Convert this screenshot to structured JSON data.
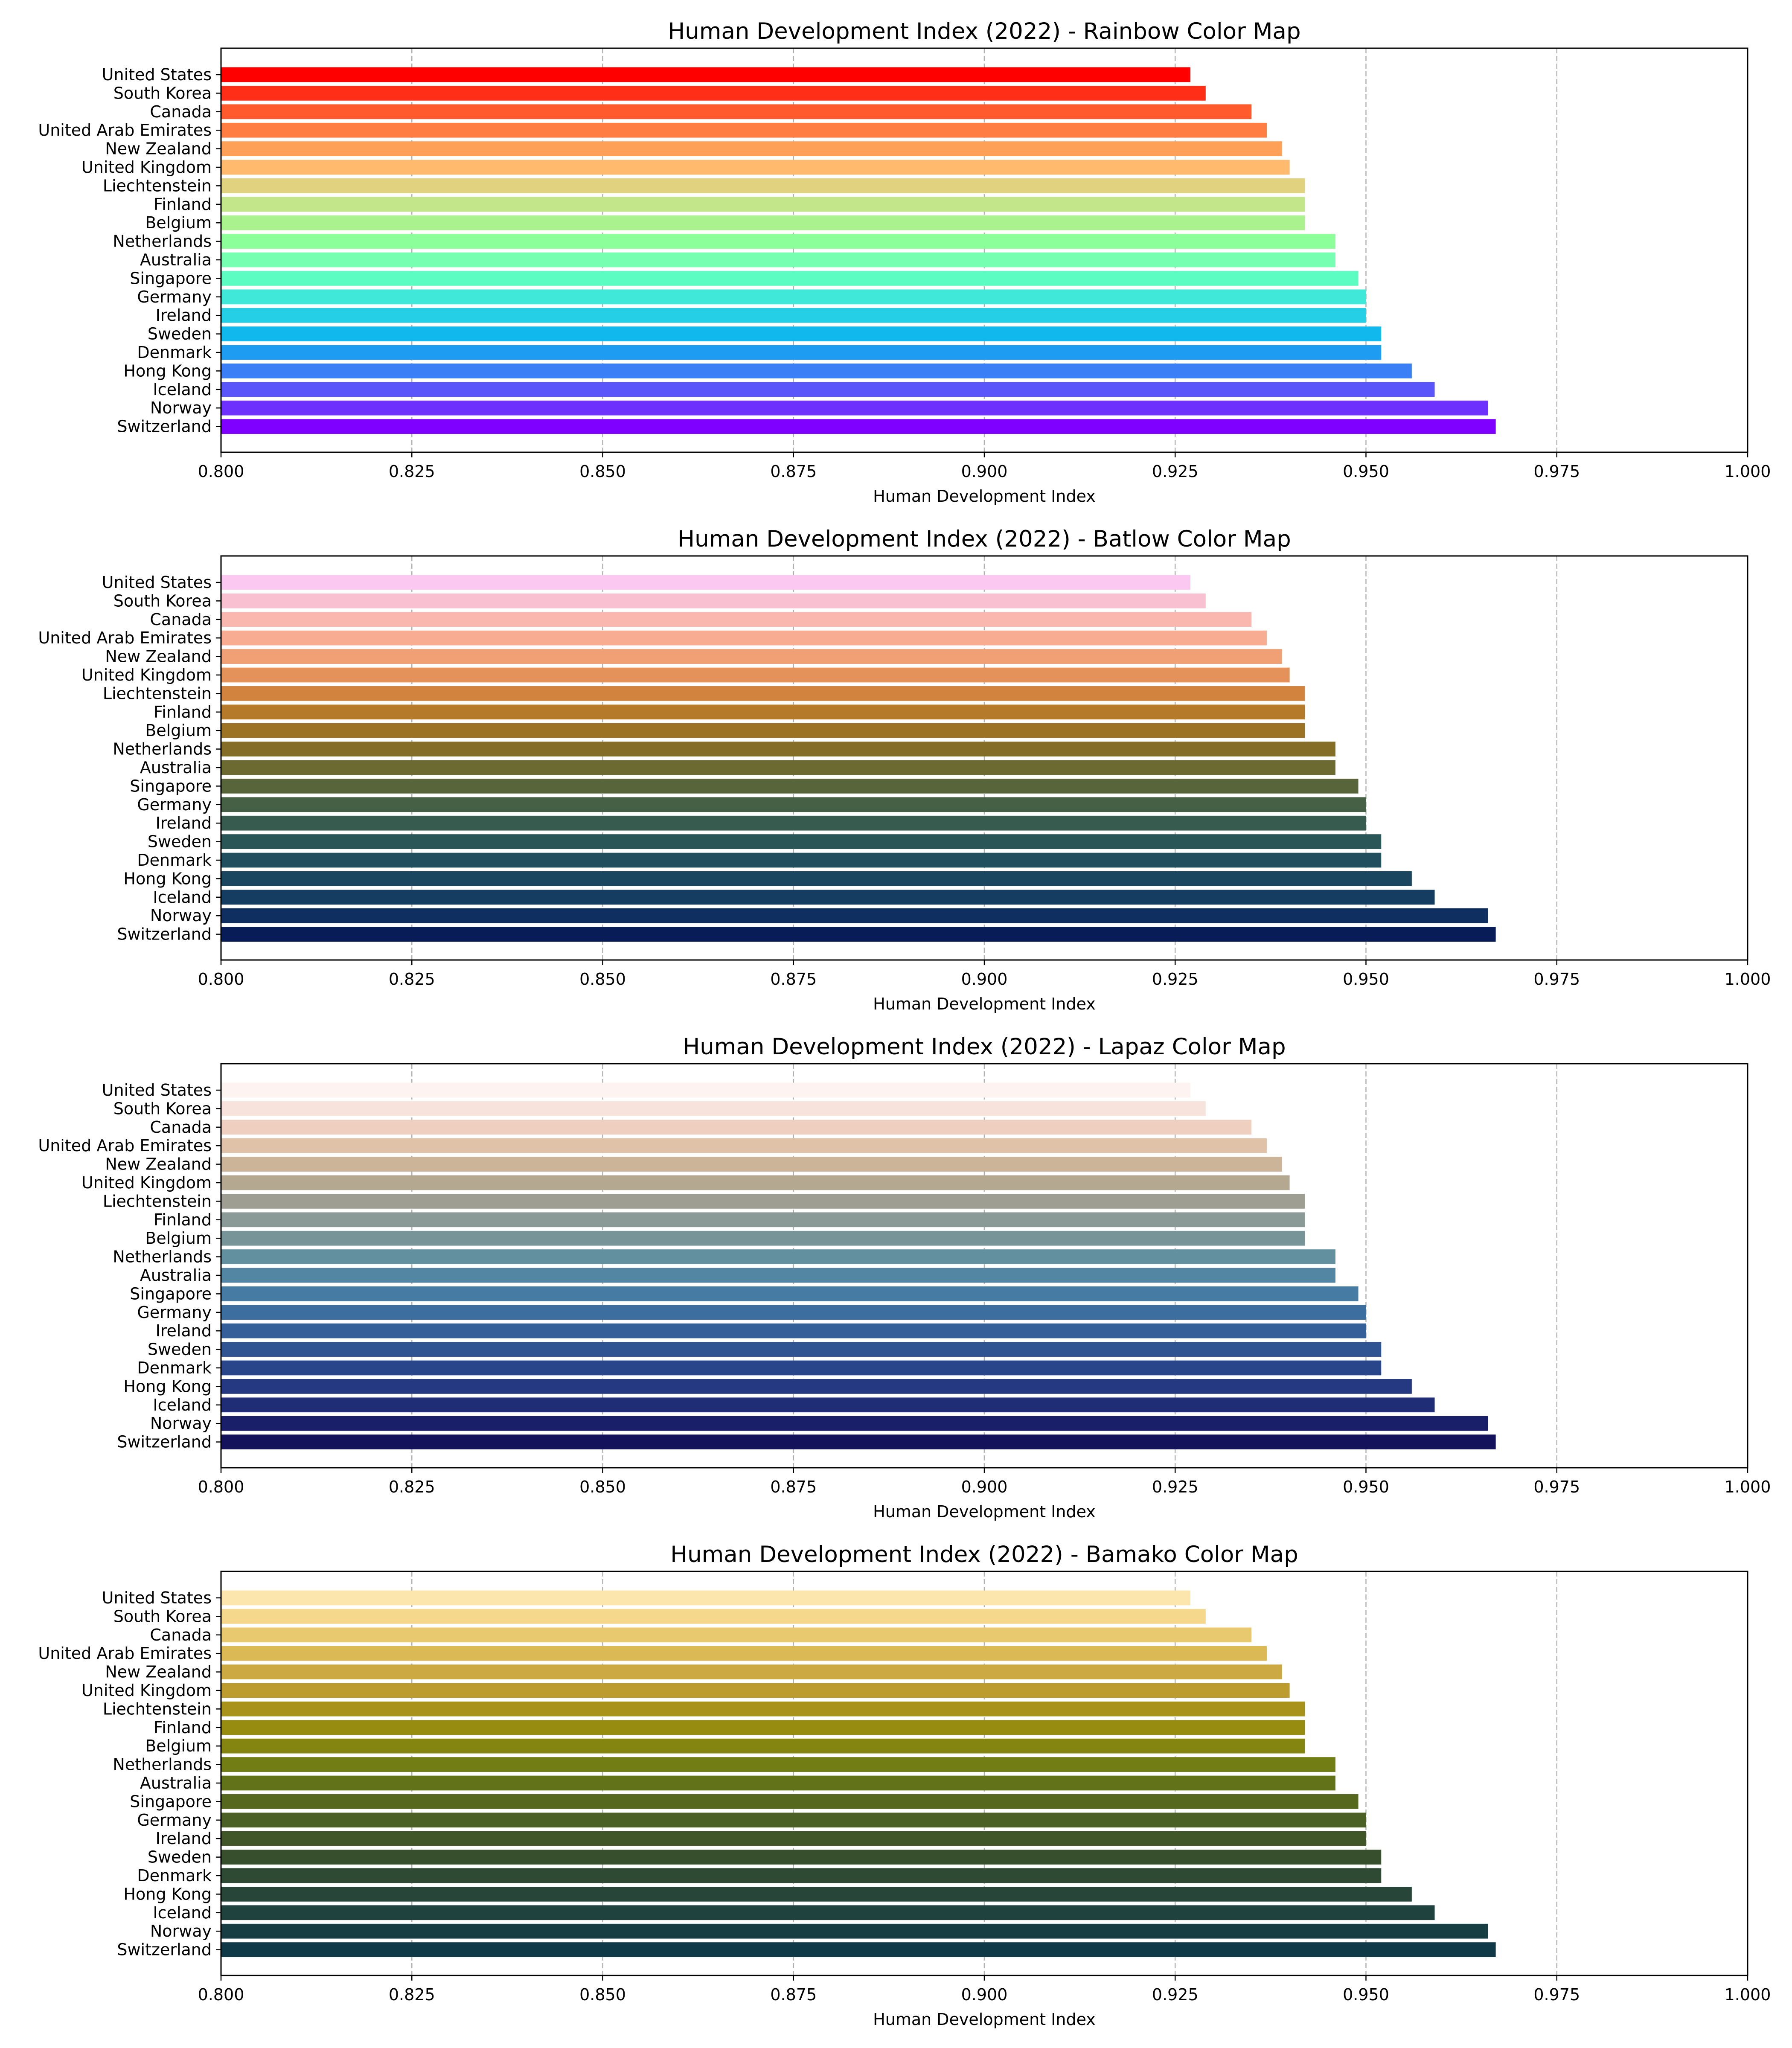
{
  "chart_data": [
    {
      "type": "bar",
      "orientation": "horizontal",
      "title": "Human Development Index (2022) - Rainbow Color Map",
      "xlabel": "Human Development Index",
      "ylabel": "",
      "xlim": [
        0.8,
        1.0
      ],
      "xticks": [
        "0.800",
        "0.825",
        "0.850",
        "0.875",
        "0.900",
        "0.925",
        "0.950",
        "0.975",
        "1.000"
      ],
      "grid": "x, dashed",
      "legend": "none",
      "categories": [
        "United States",
        "South Korea",
        "Canada",
        "United Arab Emirates",
        "New Zealand",
        "United Kingdom",
        "Liechtenstein",
        "Finland",
        "Belgium",
        "Netherlands",
        "Australia",
        "Singapore",
        "Germany",
        "Ireland",
        "Sweden",
        "Denmark",
        "Hong Kong",
        "Iceland",
        "Norway",
        "Switzerland"
      ],
      "values": [
        0.927,
        0.929,
        0.935,
        0.937,
        0.939,
        0.94,
        0.942,
        0.942,
        0.942,
        0.946,
        0.946,
        0.949,
        0.95,
        0.95,
        0.952,
        0.952,
        0.956,
        0.959,
        0.966,
        0.967
      ],
      "colors": [
        "#ff0000",
        "#ff2e17",
        "#ff5a2d",
        "#ff7c43",
        "#ffa059",
        "#ffba6e",
        "#e0d27e",
        "#c4e68a",
        "#aaf28e",
        "#8cff9a",
        "#76ffb0",
        "#5cfdc2",
        "#3fe8d8",
        "#25d0e6",
        "#10b8ee",
        "#1e9cf2",
        "#3a7ff6",
        "#5a54fb",
        "#6e30fc",
        "#8000ff"
      ]
    },
    {
      "type": "bar",
      "orientation": "horizontal",
      "title": "Human Development Index (2022) - Batlow Color Map",
      "xlabel": "Human Development Index",
      "ylabel": "",
      "xlim": [
        0.8,
        1.0
      ],
      "xticks": [
        "0.800",
        "0.825",
        "0.850",
        "0.875",
        "0.900",
        "0.925",
        "0.950",
        "0.975",
        "1.000"
      ],
      "grid": "x, dashed",
      "legend": "none",
      "categories": [
        "United States",
        "South Korea",
        "Canada",
        "United Arab Emirates",
        "New Zealand",
        "United Kingdom",
        "Liechtenstein",
        "Finland",
        "Belgium",
        "Netherlands",
        "Australia",
        "Singapore",
        "Germany",
        "Ireland",
        "Sweden",
        "Denmark",
        "Hong Kong",
        "Iceland",
        "Norway",
        "Switzerland"
      ],
      "values": [
        0.927,
        0.929,
        0.935,
        0.937,
        0.939,
        0.94,
        0.942,
        0.942,
        0.942,
        0.946,
        0.946,
        0.949,
        0.95,
        0.95,
        0.952,
        0.952,
        0.956,
        0.959,
        0.966,
        0.967
      ],
      "colors": [
        "#fac8f0",
        "#f9c0d2",
        "#f9b7b0",
        "#f8ac92",
        "#f19f74",
        "#e4915a",
        "#d2843f",
        "#b67a2b",
        "#9c7324",
        "#846e27",
        "#6c6a31",
        "#58653b",
        "#466046",
        "#375b4f",
        "#2b5658",
        "#224f5d",
        "#1a4660",
        "#143d61",
        "#0e2f5f",
        "#081d58"
      ]
    },
    {
      "type": "bar",
      "orientation": "horizontal",
      "title": "Human Development Index (2022) - Lapaz Color Map",
      "xlabel": "Human Development Index",
      "ylabel": "",
      "xlim": [
        0.8,
        1.0
      ],
      "xticks": [
        "0.800",
        "0.825",
        "0.850",
        "0.875",
        "0.900",
        "0.925",
        "0.950",
        "0.975",
        "1.000"
      ],
      "grid": "x, dashed",
      "legend": "none",
      "categories": [
        "United States",
        "South Korea",
        "Canada",
        "United Arab Emirates",
        "New Zealand",
        "United Kingdom",
        "Liechtenstein",
        "Finland",
        "Belgium",
        "Netherlands",
        "Australia",
        "Singapore",
        "Germany",
        "Ireland",
        "Sweden",
        "Denmark",
        "Hong Kong",
        "Iceland",
        "Norway",
        "Switzerland"
      ],
      "values": [
        0.927,
        0.929,
        0.935,
        0.937,
        0.939,
        0.94,
        0.942,
        0.942,
        0.942,
        0.946,
        0.946,
        0.949,
        0.95,
        0.95,
        0.952,
        0.952,
        0.956,
        0.959,
        0.966,
        0.967
      ],
      "colors": [
        "#fdf3f1",
        "#f8e3dc",
        "#efd0c0",
        "#e0c2a8",
        "#ccb499",
        "#b4a891",
        "#9e9f92",
        "#8a9a96",
        "#779599",
        "#63909f",
        "#5286a2",
        "#467ca3",
        "#3c6ea0",
        "#355f99",
        "#305392",
        "#2a468b",
        "#243981",
        "#1f2c76",
        "#1a1f69",
        "#14125a"
      ]
    },
    {
      "type": "bar",
      "orientation": "horizontal",
      "title": "Human Development Index (2022) - Bamako Color Map",
      "xlabel": "Human Development Index",
      "ylabel": "",
      "xlim": [
        0.8,
        1.0
      ],
      "xticks": [
        "0.800",
        "0.825",
        "0.850",
        "0.875",
        "0.900",
        "0.925",
        "0.950",
        "0.975",
        "1.000"
      ],
      "grid": "x, dashed",
      "legend": "none",
      "categories": [
        "United States",
        "South Korea",
        "Canada",
        "United Arab Emirates",
        "New Zealand",
        "United Kingdom",
        "Liechtenstein",
        "Finland",
        "Belgium",
        "Netherlands",
        "Australia",
        "Singapore",
        "Germany",
        "Ireland",
        "Sweden",
        "Denmark",
        "Hong Kong",
        "Iceland",
        "Norway",
        "Switzerland"
      ],
      "values": [
        0.927,
        0.929,
        0.935,
        0.937,
        0.939,
        0.94,
        0.942,
        0.942,
        0.942,
        0.946,
        0.946,
        0.949,
        0.95,
        0.95,
        0.952,
        0.952,
        0.956,
        0.959,
        0.966,
        0.967
      ],
      "colors": [
        "#fde6ad",
        "#f5d88c",
        "#e9c96f",
        "#dbb955",
        "#cda944",
        "#bc9b2f",
        "#a9921a",
        "#978b10",
        "#848510",
        "#727d13",
        "#627218",
        "#55681e",
        "#4a6024",
        "#405629",
        "#384f2d",
        "#2f4a33",
        "#274538",
        "#1f423e",
        "#163e43",
        "#0f3947"
      ]
    }
  ]
}
